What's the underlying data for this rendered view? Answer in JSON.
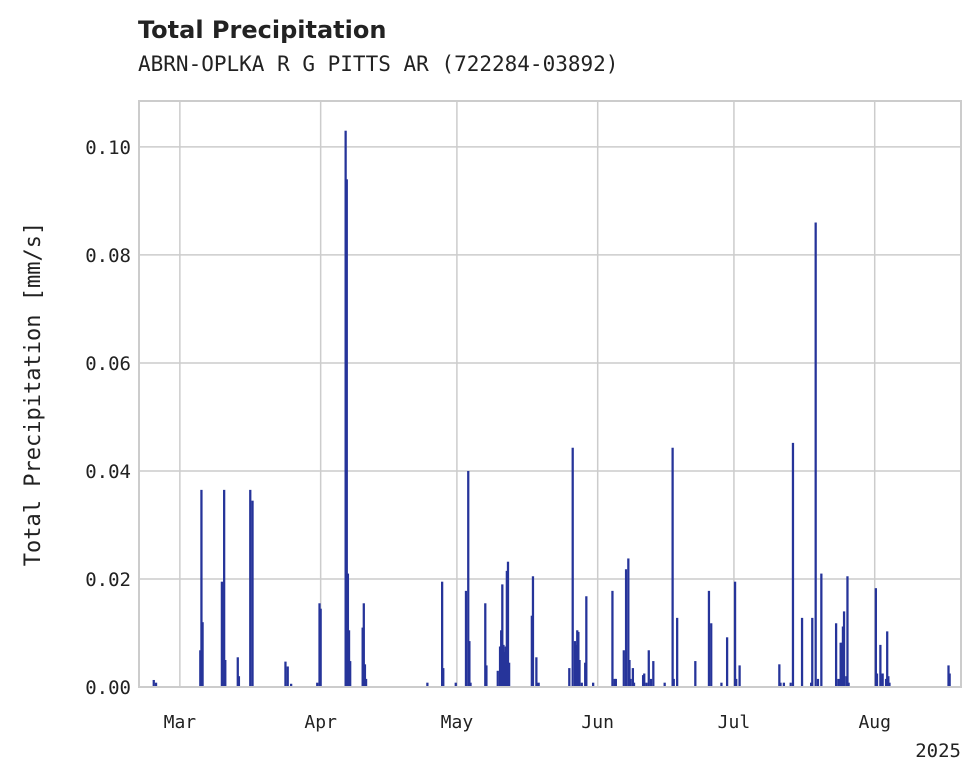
{
  "header": {
    "title": "Total Precipitation",
    "subtitle": "ABRN-OPLKA R G PITTS AR (722284-03892)"
  },
  "chart_data": {
    "type": "bar",
    "title": "Total Precipitation",
    "subtitle": "ABRN-OPLKA R G PITTS AR (722284-03892)",
    "ylabel": "Total Precipitation [mm/s]",
    "xlabel": "",
    "year_label": "2025",
    "xlim": [
      "2025-02-20",
      "2025-08-20"
    ],
    "ylim": [
      0,
      0.1085
    ],
    "yticks": [
      0.0,
      0.02,
      0.04,
      0.06,
      0.08,
      0.1
    ],
    "ytick_labels": [
      "0.00",
      "0.02",
      "0.04",
      "0.06",
      "0.08",
      "0.10"
    ],
    "xticks": [
      "2025-03-01",
      "2025-04-01",
      "2025-05-01",
      "2025-06-01",
      "2025-07-01",
      "2025-08-01"
    ],
    "xtick_labels": [
      "Mar",
      "Apr",
      "May",
      "Jun",
      "Jul",
      "Aug"
    ],
    "grid": true,
    "color": "#26349a",
    "series": [
      {
        "points": [
          [
            "2025-02-23T06:00",
            0.0013
          ],
          [
            "2025-02-23T18:00",
            0.0008
          ],
          [
            "2025-03-05T12:00",
            0.0068
          ],
          [
            "2025-03-05T18:00",
            0.0365
          ],
          [
            "2025-03-06T00:00",
            0.012
          ],
          [
            "2025-03-10T06:00",
            0.0195
          ],
          [
            "2025-03-10T18:00",
            0.0365
          ],
          [
            "2025-03-11T00:00",
            0.005
          ],
          [
            "2025-03-13T18:00",
            0.0055
          ],
          [
            "2025-03-14T00:00",
            0.002
          ],
          [
            "2025-03-16T12:00",
            0.0365
          ],
          [
            "2025-03-17T00:00",
            0.0345
          ],
          [
            "2025-03-24T06:00",
            0.0047
          ],
          [
            "2025-03-24T18:00",
            0.0038
          ],
          [
            "2025-03-25T12:00",
            0.0006
          ],
          [
            "2025-03-31T06:00",
            0.0008
          ],
          [
            "2025-03-31T18:00",
            0.0155
          ],
          [
            "2025-04-01T00:00",
            0.0145
          ],
          [
            "2025-04-06T12:00",
            0.103
          ],
          [
            "2025-04-06T18:00",
            0.094
          ],
          [
            "2025-04-07T00:00",
            0.021
          ],
          [
            "2025-04-07T06:00",
            0.0105
          ],
          [
            "2025-04-07T12:00",
            0.0048
          ],
          [
            "2025-04-10T06:00",
            0.011
          ],
          [
            "2025-04-10T12:00",
            0.0155
          ],
          [
            "2025-04-10T18:00",
            0.0042
          ],
          [
            "2025-04-11T00:00",
            0.0015
          ],
          [
            "2025-04-24T12:00",
            0.0008
          ],
          [
            "2025-04-27T18:00",
            0.0195
          ],
          [
            "2025-04-28T00:00",
            0.0035
          ],
          [
            "2025-04-30T18:00",
            0.0008
          ],
          [
            "2025-05-03T00:00",
            0.0178
          ],
          [
            "2025-05-03T12:00",
            0.04
          ],
          [
            "2025-05-03T18:00",
            0.0085
          ],
          [
            "2025-05-04T00:00",
            0.0008
          ],
          [
            "2025-05-07T06:00",
            0.0155
          ],
          [
            "2025-05-07T12:00",
            0.004
          ],
          [
            "2025-05-10T00:00",
            0.003
          ],
          [
            "2025-05-10T12:00",
            0.0075
          ],
          [
            "2025-05-10T18:00",
            0.0105
          ],
          [
            "2025-05-11T00:00",
            0.019
          ],
          [
            "2025-05-11T06:00",
            0.0078
          ],
          [
            "2025-05-11T12:00",
            0.0065
          ],
          [
            "2025-05-11T18:00",
            0.0075
          ],
          [
            "2025-05-12T00:00",
            0.0215
          ],
          [
            "2025-05-12T06:00",
            0.0232
          ],
          [
            "2025-05-12T12:00",
            0.0045
          ],
          [
            "2025-05-17T12:00",
            0.0132
          ],
          [
            "2025-05-17T18:00",
            0.0205
          ],
          [
            "2025-05-18T12:00",
            0.0055
          ],
          [
            "2025-05-19T00:00",
            0.0008
          ],
          [
            "2025-05-25T18:00",
            0.0035
          ],
          [
            "2025-05-26T12:00",
            0.0443
          ],
          [
            "2025-05-27T00:00",
            0.0085
          ],
          [
            "2025-05-27T06:00",
            0.0078
          ],
          [
            "2025-05-27T12:00",
            0.0105
          ],
          [
            "2025-05-27T18:00",
            0.0102
          ],
          [
            "2025-05-28T00:00",
            0.005
          ],
          [
            "2025-05-28T12:00",
            0.0008
          ],
          [
            "2025-05-29T06:00",
            0.0045
          ],
          [
            "2025-05-29T12:00",
            0.0168
          ],
          [
            "2025-05-31T00:00",
            0.0008
          ],
          [
            "2025-06-04T06:00",
            0.0178
          ],
          [
            "2025-06-04T18:00",
            0.0015
          ],
          [
            "2025-06-05T00:00",
            0.0015
          ],
          [
            "2025-06-06T18:00",
            0.0068
          ],
          [
            "2025-06-07T06:00",
            0.0218
          ],
          [
            "2025-06-07T18:00",
            0.0238
          ],
          [
            "2025-06-08T00:00",
            0.005
          ],
          [
            "2025-06-08T06:00",
            0.0015
          ],
          [
            "2025-06-08T18:00",
            0.0035
          ],
          [
            "2025-06-09T00:00",
            0.0008
          ],
          [
            "2025-06-11T00:00",
            0.0022
          ],
          [
            "2025-06-11T06:00",
            0.0025
          ],
          [
            "2025-06-11T18:00",
            0.0008
          ],
          [
            "2025-06-12T06:00",
            0.0068
          ],
          [
            "2025-06-12T18:00",
            0.0015
          ],
          [
            "2025-06-13T06:00",
            0.0048
          ],
          [
            "2025-06-15T18:00",
            0.0008
          ],
          [
            "2025-06-17T12:00",
            0.0443
          ],
          [
            "2025-06-17T18:00",
            0.0015
          ],
          [
            "2025-06-18T12:00",
            0.0128
          ],
          [
            "2025-06-22T12:00",
            0.0048
          ],
          [
            "2025-06-25T12:00",
            0.0178
          ],
          [
            "2025-06-26T00:00",
            0.0118
          ],
          [
            "2025-06-28T06:00",
            0.0008
          ],
          [
            "2025-06-29T12:00",
            0.0092
          ],
          [
            "2025-07-01T06:00",
            0.0195
          ],
          [
            "2025-07-01T12:00",
            0.0015
          ],
          [
            "2025-07-02T06:00",
            0.004
          ],
          [
            "2025-07-11T00:00",
            0.0042
          ],
          [
            "2025-07-11T06:00",
            0.0008
          ],
          [
            "2025-07-12T00:00",
            0.0008
          ],
          [
            "2025-07-13T12:00",
            0.0008
          ],
          [
            "2025-07-14T00:00",
            0.0452
          ],
          [
            "2025-07-16T00:00",
            0.0128
          ],
          [
            "2025-07-18T00:00",
            0.0008
          ],
          [
            "2025-07-18T06:00",
            0.0128
          ],
          [
            "2025-07-19T00:00",
            0.086
          ],
          [
            "2025-07-19T12:00",
            0.0015
          ],
          [
            "2025-07-20T06:00",
            0.021
          ],
          [
            "2025-07-23T12:00",
            0.0118
          ],
          [
            "2025-07-24T00:00",
            0.0015
          ],
          [
            "2025-07-24T12:00",
            0.0082
          ],
          [
            "2025-07-24T18:00",
            0.0082
          ],
          [
            "2025-07-25T00:00",
            0.0112
          ],
          [
            "2025-07-25T06:00",
            0.014
          ],
          [
            "2025-07-25T18:00",
            0.002
          ],
          [
            "2025-07-26T00:00",
            0.0205
          ],
          [
            "2025-07-26T06:00",
            0.0008
          ],
          [
            "2025-08-01T06:00",
            0.0183
          ],
          [
            "2025-08-01T12:00",
            0.0025
          ],
          [
            "2025-08-02T06:00",
            0.0078
          ],
          [
            "2025-08-02T18:00",
            0.0025
          ],
          [
            "2025-08-03T12:00",
            0.0015
          ],
          [
            "2025-08-03T18:00",
            0.0103
          ],
          [
            "2025-08-04T00:00",
            0.002
          ],
          [
            "2025-08-04T06:00",
            0.0008
          ],
          [
            "2025-08-17T06:00",
            0.004
          ],
          [
            "2025-08-17T12:00",
            0.0025
          ]
        ]
      }
    ]
  }
}
